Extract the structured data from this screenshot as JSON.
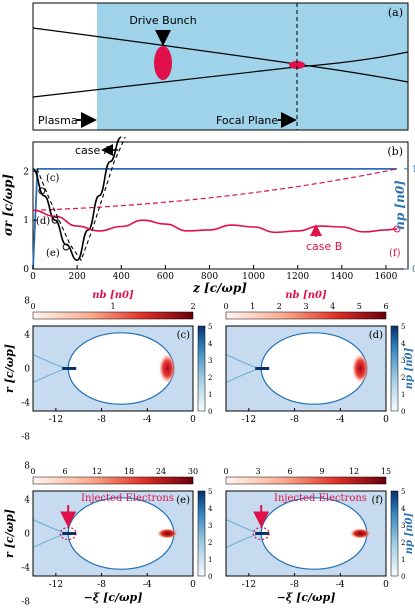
{
  "panel_a": {
    "tag": "(a)",
    "drive_bunch_label": "Drive Bunch",
    "plasma_label": "Plasma",
    "focal_plane_label": "Focal Plane",
    "colors": {
      "plasma": "#9fd3ea",
      "bunch": "#e0114a"
    }
  },
  "panel_b": {
    "tag": "(b)",
    "ylabel": "σr [c/ωp]",
    "ylabel_right": "np [n0]",
    "xlabel": "z [c/ωp]",
    "case_a_label": "case A",
    "case_b_label": "case B",
    "markers": [
      "(c)",
      "(d)",
      "(e)",
      "(f)"
    ],
    "xticks": [
      "0",
      "200",
      "400",
      "600",
      "800",
      "1000",
      "1200",
      "1400",
      "1600"
    ],
    "yticks_left": [
      "0",
      "1",
      "2"
    ],
    "yticks_right": [
      "0",
      "1"
    ]
  },
  "chart_data": {
    "type": "line",
    "xlim": [
      0,
      1700
    ],
    "ylim": [
      0,
      2.6
    ],
    "series": [
      {
        "name": "case A",
        "x": [
          0,
          50,
          100,
          150,
          200,
          250,
          300,
          350,
          400
        ],
        "y": [
          2.05,
          1.5,
          1.0,
          0.5,
          0.18,
          0.8,
          1.5,
          2.2,
          2.7
        ]
      },
      {
        "name": "case B",
        "x": [
          0,
          100,
          200,
          300,
          400,
          500,
          600,
          700,
          800,
          900,
          1000,
          1100,
          1200,
          1300,
          1400,
          1500,
          1600,
          1650
        ],
        "y": [
          1.2,
          1.08,
          0.88,
          0.78,
          0.87,
          1.0,
          0.92,
          0.78,
          0.8,
          0.9,
          0.86,
          0.75,
          0.78,
          0.88,
          0.86,
          0.76,
          0.8,
          0.82
        ]
      }
    ],
    "density_profile": {
      "x": [
        0,
        20,
        1650
      ],
      "y": [
        0,
        1,
        1
      ]
    }
  },
  "panels_maps": [
    {
      "tag": "(c)",
      "colorbar_top_label": "nb [n0]",
      "colorbar_top_ticks": [
        "0",
        "1",
        "2"
      ],
      "colorbar_right_ticks": [
        "0",
        "1",
        "2",
        "3",
        "4",
        "5"
      ],
      "xticks": [
        "-12",
        "-8",
        "-4",
        "0"
      ],
      "yticks": [
        "8",
        "4",
        "0",
        "-4",
        "-8"
      ],
      "ylabel": "r [c/ωp]"
    },
    {
      "tag": "(d)",
      "colorbar_top_label": "nb [n0]",
      "colorbar_top_ticks": [
        "0",
        "1",
        "2",
        "3",
        "4",
        "5",
        "6"
      ],
      "colorbar_right_ticks": [
        "0",
        "1",
        "2",
        "3",
        "4",
        "5"
      ],
      "colorbar_right_label": "np [n0]",
      "xticks": [
        "-12",
        "-8",
        "-4",
        "0"
      ]
    },
    {
      "tag": "(e)",
      "colorbar_top_ticks": [
        "0",
        "6",
        "12",
        "18",
        "24",
        "30"
      ],
      "colorbar_right_ticks": [
        "0",
        "1",
        "2",
        "3",
        "4",
        "5"
      ],
      "xticks": [
        "-12",
        "-8",
        "-4",
        "0"
      ],
      "yticks": [
        "8",
        "4",
        "0",
        "-4",
        "-8"
      ],
      "ylabel": "r [c/ωp]",
      "xlabel": "−ξ [c/ωp]",
      "annotation": "Injected Electrons"
    },
    {
      "tag": "(f)",
      "colorbar_top_ticks": [
        "0",
        "3",
        "6",
        "9",
        "12",
        "15"
      ],
      "colorbar_right_ticks": [
        "0",
        "1",
        "2",
        "3",
        "4",
        "5"
      ],
      "colorbar_right_label": "np [n0]",
      "xticks": [
        "-12",
        "-8",
        "-4",
        "0"
      ],
      "xlabel": "−ξ [c/ωp]",
      "annotation": "Injected Electrons"
    }
  ]
}
